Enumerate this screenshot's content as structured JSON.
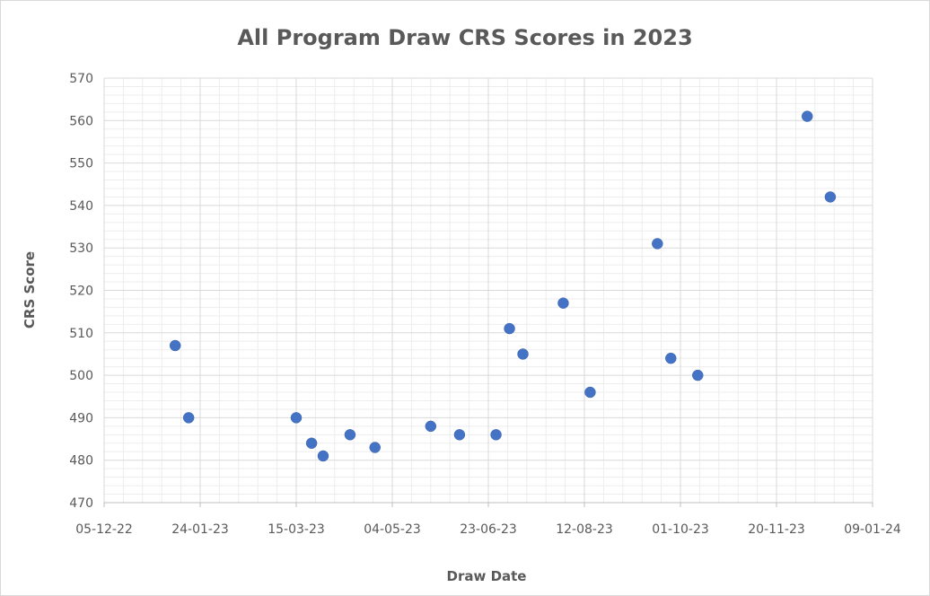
{
  "chart_data": {
    "type": "scatter",
    "title": "All Program Draw CRS Scores in 2023",
    "xlabel": "Draw Date",
    "ylabel": "CRS Score",
    "x_axis_type": "date",
    "xlim": [
      "2022-12-05",
      "2024-01-09"
    ],
    "ylim": [
      470,
      570
    ],
    "x_ticks": [
      "05-12-22",
      "24-01-23",
      "15-03-23",
      "04-05-23",
      "23-06-23",
      "12-08-23",
      "01-10-23",
      "20-11-23",
      "09-01-24"
    ],
    "y_ticks": [
      470,
      480,
      490,
      500,
      510,
      520,
      530,
      540,
      550,
      560,
      570
    ],
    "grid": "major and minor",
    "legend": "none",
    "marker_color": "#4472C4",
    "series": [
      {
        "points": [
          {
            "x": "2023-01-11",
            "y": 507
          },
          {
            "x": "2023-01-18",
            "y": 490
          },
          {
            "x": "2023-03-15",
            "y": 490
          },
          {
            "x": "2023-03-23",
            "y": 484
          },
          {
            "x": "2023-03-29",
            "y": 481
          },
          {
            "x": "2023-04-12",
            "y": 486
          },
          {
            "x": "2023-04-25",
            "y": 483
          },
          {
            "x": "2023-05-24",
            "y": 488
          },
          {
            "x": "2023-06-08",
            "y": 486
          },
          {
            "x": "2023-06-27",
            "y": 486
          },
          {
            "x": "2023-07-04",
            "y": 511
          },
          {
            "x": "2023-07-11",
            "y": 505
          },
          {
            "x": "2023-08-01",
            "y": 517
          },
          {
            "x": "2023-08-15",
            "y": 496
          },
          {
            "x": "2023-09-19",
            "y": 531
          },
          {
            "x": "2023-09-26",
            "y": 504
          },
          {
            "x": "2023-10-10",
            "y": 500
          },
          {
            "x": "2023-12-06",
            "y": 561
          },
          {
            "x": "2023-12-18",
            "y": 542
          }
        ]
      }
    ]
  }
}
